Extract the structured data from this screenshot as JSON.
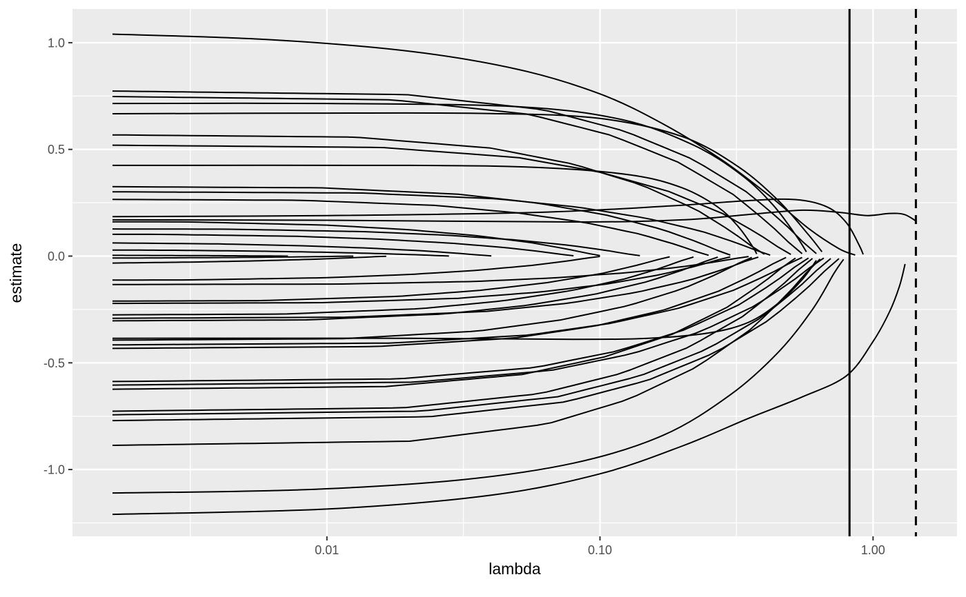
{
  "figure": {
    "background": "#FFFFFF"
  },
  "chart_data": {
    "type": "line",
    "title": "",
    "xlabel": "lambda",
    "ylabel": "estimate",
    "x_scale": "log10",
    "grid": "on",
    "legend": "none",
    "panel_background": "#EBEBEB",
    "grid_color": "#FFFFFF",
    "line_color": "#000000",
    "tick_label_color": "#4D4D4D",
    "tick_mark_color": "#333333",
    "x_domain": [
      0.00117,
      2.03
    ],
    "y_domain": [
      -1.313,
      1.158
    ],
    "x_ticks": {
      "values": [
        0.01,
        0.1,
        1
      ],
      "labels": [
        "0.01",
        "0.10",
        "1.00"
      ]
    },
    "y_ticks": {
      "values": [
        -1,
        -0.5,
        0,
        0.5,
        1
      ],
      "labels": [
        "-1.0",
        "-0.5",
        "0.0",
        "0.5",
        "1.0"
      ]
    },
    "x_minor_breaks": [
      0.00316,
      0.0316,
      0.316
    ],
    "y_minor_breaks": [
      -1.25,
      -0.75,
      -0.25,
      0.25,
      0.75
    ],
    "reference_lines": [
      {
        "x": 0.82,
        "style": "solid"
      },
      {
        "x": 1.435,
        "style": "dashed"
      }
    ],
    "lambda_start": 0.00164,
    "decay_profile": {
      "u": [
        -3,
        -1.5,
        -1,
        -0.7,
        -0.45,
        -0.25,
        -0.12,
        -0.04,
        0
      ],
      "f": [
        1,
        0.97,
        0.88,
        0.75,
        0.58,
        0.38,
        0.2,
        0.07,
        0.015
      ]
    },
    "series": [
      {
        "points": [
          [
            0.00164,
            1.04
          ],
          [
            0.006,
            1.015
          ],
          [
            0.02,
            0.96
          ],
          [
            0.05,
            0.875
          ],
          [
            0.1,
            0.76
          ],
          [
            0.17,
            0.62
          ],
          [
            0.28,
            0.45
          ],
          [
            0.42,
            0.28
          ],
          [
            0.58,
            0.13
          ],
          [
            0.75,
            0.035
          ],
          [
            0.86,
            0.005
          ]
        ]
      },
      {
        "points": [
          [
            0.00164,
            0.715
          ],
          [
            0.01,
            0.715
          ],
          [
            0.05,
            0.7
          ],
          [
            0.12,
            0.64
          ],
          [
            0.22,
            0.52
          ],
          [
            0.33,
            0.38
          ],
          [
            0.43,
            0.24
          ],
          [
            0.52,
            0.1
          ],
          [
            0.57,
            0.02
          ]
        ]
      },
      {
        "points": [
          [
            0.00164,
            0.667
          ],
          [
            0.01,
            0.67
          ],
          [
            0.04,
            0.668
          ],
          [
            0.1,
            0.645
          ],
          [
            0.2,
            0.56
          ],
          [
            0.32,
            0.42
          ],
          [
            0.45,
            0.26
          ],
          [
            0.58,
            0.1
          ],
          [
            0.65,
            0.02
          ]
        ]
      },
      {
        "points": [
          [
            0.00164,
            0.185
          ],
          [
            0.01,
            0.19
          ],
          [
            0.06,
            0.205
          ],
          [
            0.18,
            0.235
          ],
          [
            0.35,
            0.26
          ],
          [
            0.52,
            0.265
          ],
          [
            0.68,
            0.23
          ],
          [
            0.8,
            0.155
          ],
          [
            0.89,
            0.05
          ],
          [
            0.92,
            0.008
          ]
        ]
      },
      {
        "points": [
          [
            0.00164,
            0.17
          ],
          [
            0.01,
            0.168
          ],
          [
            0.08,
            0.16
          ],
          [
            0.2,
            0.17
          ],
          [
            0.35,
            0.195
          ],
          [
            0.55,
            0.215
          ],
          [
            0.75,
            0.205
          ],
          [
            0.95,
            0.19
          ],
          [
            1.15,
            0.2
          ],
          [
            1.3,
            0.195
          ],
          [
            1.435,
            0.165
          ]
        ]
      },
      {
        "points": [
          [
            0.00164,
            0.425
          ],
          [
            0.02,
            0.425
          ],
          [
            0.06,
            0.415
          ],
          [
            0.13,
            0.38
          ],
          [
            0.2,
            0.32
          ],
          [
            0.27,
            0.23
          ],
          [
            0.32,
            0.14
          ],
          [
            0.36,
            0.05
          ],
          [
            0.375,
            0.01
          ]
        ]
      },
      {
        "points": [
          [
            0.00164,
            -0.385
          ],
          [
            0.02,
            -0.385
          ],
          [
            0.08,
            -0.39
          ],
          [
            0.15,
            -0.385
          ],
          [
            0.25,
            -0.36
          ],
          [
            0.35,
            -0.31
          ],
          [
            0.45,
            -0.22
          ],
          [
            0.55,
            -0.11
          ],
          [
            0.62,
            -0.02
          ]
        ]
      },
      {
        "points": [
          [
            0.00164,
            -1.11
          ],
          [
            0.008,
            -1.095
          ],
          [
            0.03,
            -1.05
          ],
          [
            0.08,
            -0.97
          ],
          [
            0.17,
            -0.84
          ],
          [
            0.3,
            -0.65
          ],
          [
            0.45,
            -0.45
          ],
          [
            0.6,
            -0.25
          ],
          [
            0.72,
            -0.08
          ],
          [
            0.78,
            -0.015
          ]
        ]
      },
      {
        "points": [
          [
            0.00164,
            -1.21
          ],
          [
            0.01,
            -1.185
          ],
          [
            0.04,
            -1.12
          ],
          [
            0.1,
            -1.02
          ],
          [
            0.2,
            -0.89
          ],
          [
            0.35,
            -0.76
          ],
          [
            0.55,
            -0.66
          ],
          [
            0.8,
            -0.56
          ],
          [
            1.0,
            -0.4
          ],
          [
            1.15,
            -0.26
          ],
          [
            1.25,
            -0.14
          ],
          [
            1.31,
            -0.037
          ]
        ]
      },
      {
        "start": 0.78,
        "end": 0.62
      },
      {
        "start": 0.755,
        "end": 0.55
      },
      {
        "start": 0.575,
        "end": 0.4
      },
      {
        "start": 0.525,
        "end": 0.5
      },
      {
        "start": 0.33,
        "end": 0.3
      },
      {
        "start": 0.305,
        "end": 0.42
      },
      {
        "start": 0.27,
        "end": 0.25
      },
      {
        "start": 0.165,
        "end": 0.1
      },
      {
        "start": 0.13,
        "end": 0.14
      },
      {
        "start": 0.105,
        "end": 0.08
      },
      {
        "start": 0.065,
        "end": 0.04
      },
      {
        "start": 0.031,
        "end": 0.028
      },
      {
        "start": 0.005,
        "end": 0.0072
      },
      {
        "start": -0.011,
        "end": 0.0125
      },
      {
        "start": -0.037,
        "end": 0.0165
      },
      {
        "start": -0.115,
        "end": 0.1
      },
      {
        "start": -0.135,
        "end": 0.35
      },
      {
        "start": -0.215,
        "end": 0.18
      },
      {
        "start": -0.225,
        "end": 0.3
      },
      {
        "start": -0.28,
        "end": 0.22
      },
      {
        "start": -0.295,
        "end": 0.38
      },
      {
        "start": -0.308,
        "end": 0.27
      },
      {
        "start": -0.399,
        "end": 0.36
      },
      {
        "start": -0.42,
        "end": 0.55
      },
      {
        "start": -0.437,
        "end": 0.48
      },
      {
        "start": -0.593,
        "end": 0.58
      },
      {
        "start": -0.609,
        "end": 0.66
      },
      {
        "start": -0.63,
        "end": 0.52
      },
      {
        "start": -0.733,
        "end": 0.6
      },
      {
        "start": -0.749,
        "end": 0.7
      },
      {
        "start": -0.776,
        "end": 0.75
      },
      {
        "start": -0.894,
        "end": 0.64
      }
    ]
  }
}
